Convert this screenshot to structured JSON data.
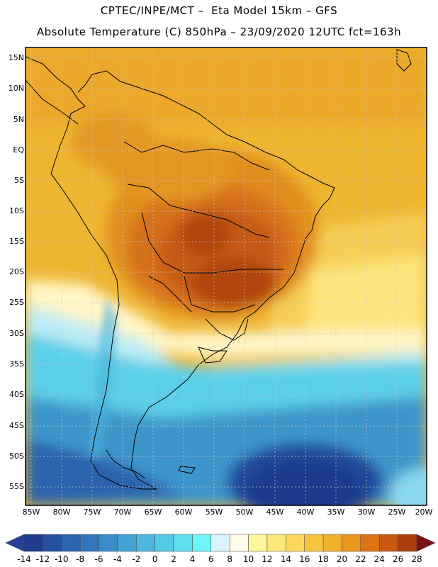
{
  "header": {
    "line1": "CPTEC/INPE/MCT –  Eta Model 15km – GFS",
    "line2": "Absolute Temperature (C) 850hPa – 23/09/2020 12UTC fct=163h"
  },
  "map": {
    "lat_labels": [
      "15N",
      "10N",
      "5N",
      "EQ",
      "5S",
      "10S",
      "15S",
      "20S",
      "25S",
      "30S",
      "35S",
      "40S",
      "45S",
      "50S",
      "55S"
    ],
    "lon_labels": [
      "85W",
      "80W",
      "75W",
      "70W",
      "65W",
      "60W",
      "55W",
      "50W",
      "45W",
      "40W",
      "35W",
      "30W",
      "25W",
      "20W"
    ]
  },
  "colorbar": {
    "labels": [
      "-14",
      "-12",
      "-10",
      "-8",
      "-6",
      "-4",
      "-2",
      "0",
      "2",
      "4",
      "6",
      "8",
      "10",
      "12",
      "14",
      "16",
      "18",
      "20",
      "22",
      "24",
      "26",
      "28"
    ],
    "colors": [
      "#1f3c8e",
      "#26509e",
      "#2c64ae",
      "#3277bb",
      "#3a8cc8",
      "#43a2d4",
      "#4cb6de",
      "#54cae6",
      "#60dfee",
      "#6ef5f8",
      "#d8f5fb",
      "#fffbe8",
      "#fff79c",
      "#fde97a",
      "#fbd85c",
      "#f6c53d",
      "#f1b22b",
      "#e8941d",
      "#de7313",
      "#c85a10",
      "#aa3e0d",
      "#8a2a0c"
    ],
    "under_color": "#2a3f9a",
    "over_color": "#7a1418"
  }
}
